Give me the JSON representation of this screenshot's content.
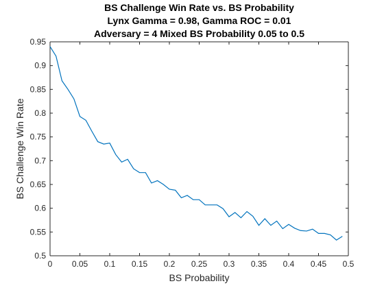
{
  "chart_data": {
    "type": "line",
    "title": [
      "BS Challenge Win Rate vs. BS Probability",
      "Lynx Gamma = 0.98, Gamma ROC = 0.01",
      "Adversary = 4 Mixed BS Probability 0.05 to 0.5"
    ],
    "xlabel": "BS Probability",
    "ylabel": "BS Challenge Win Rate",
    "xlim": [
      0,
      0.5
    ],
    "ylim": [
      0.5,
      0.95
    ],
    "xticks": [
      "0",
      "0.05",
      "0.1",
      "0.15",
      "0.2",
      "0.25",
      "0.3",
      "0.35",
      "0.4",
      "0.45",
      "0.5"
    ],
    "yticks": [
      "0.5",
      "0.55",
      "0.6",
      "0.65",
      "0.7",
      "0.75",
      "0.8",
      "0.85",
      "0.9",
      "0.95"
    ],
    "grid": false,
    "line_color": "#0072BD",
    "series": [
      {
        "x": [
          0,
          0.01,
          0.02,
          0.03,
          0.04,
          0.05,
          0.06,
          0.07,
          0.08,
          0.09,
          0.1,
          0.11,
          0.12,
          0.13,
          0.14,
          0.15,
          0.16,
          0.17,
          0.18,
          0.19,
          0.2,
          0.21,
          0.22,
          0.23,
          0.24,
          0.25,
          0.26,
          0.27,
          0.28,
          0.29,
          0.3,
          0.31,
          0.32,
          0.33,
          0.34,
          0.35,
          0.36,
          0.37,
          0.38,
          0.39,
          0.4,
          0.41,
          0.42,
          0.43,
          0.44,
          0.45,
          0.46,
          0.47,
          0.48,
          0.49
        ],
        "y": [
          0.94,
          0.92,
          0.868,
          0.85,
          0.83,
          0.793,
          0.785,
          0.762,
          0.74,
          0.735,
          0.737,
          0.713,
          0.697,
          0.703,
          0.683,
          0.675,
          0.675,
          0.653,
          0.658,
          0.65,
          0.64,
          0.638,
          0.622,
          0.627,
          0.618,
          0.618,
          0.607,
          0.607,
          0.607,
          0.599,
          0.582,
          0.591,
          0.58,
          0.593,
          0.583,
          0.564,
          0.578,
          0.564,
          0.573,
          0.557,
          0.566,
          0.558,
          0.553,
          0.552,
          0.556,
          0.547,
          0.547,
          0.544,
          0.533,
          0.541
        ]
      }
    ]
  }
}
